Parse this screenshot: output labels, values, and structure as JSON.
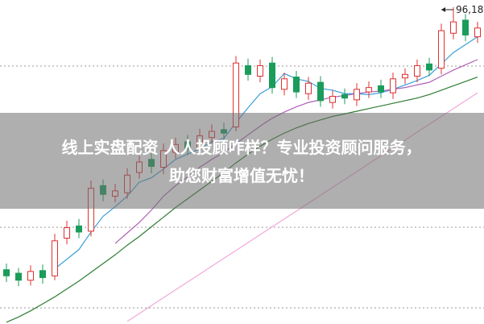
{
  "chart_data": {
    "type": "candlestick",
    "title_lines": [
      "线上实盘配资 人人投顾咋样？专业投资顾问服务，",
      "助您财富增值无忧！"
    ],
    "annotation": "96,18",
    "ylim": [
      60,
      97
    ],
    "up_color": "#e03030",
    "down_color": "#1a9c5a",
    "open": [
      66.2,
      65.8,
      65.0,
      66.1,
      65.5,
      69.8,
      71.2,
      70.6,
      75.8,
      74.6,
      75.0,
      77.3,
      78.8,
      77.9,
      79.6,
      80.8,
      80.1,
      81.3,
      82.2,
      82.5,
      89.5,
      88.3,
      89.8,
      86.8,
      88.2,
      86.3,
      87.6,
      85.3,
      86.2,
      85.6,
      86.5,
      87.2,
      86.4,
      88.1,
      88.3,
      89.7,
      89.2,
      93.2,
      94.7,
      92.8
    ],
    "high": [
      66.9,
      66.4,
      66.7,
      66.8,
      70.3,
      71.8,
      72.0,
      76.4,
      76.5,
      76.0,
      77.8,
      79.2,
      79.6,
      80.6,
      81.3,
      81.6,
      82.3,
      82.8,
      83.0,
      90.6,
      90.3,
      90.2,
      90.5,
      88.7,
      88.9,
      88.2,
      88.3,
      86.7,
      86.9,
      87.5,
      87.7,
      87.9,
      88.7,
      89.2,
      90.2,
      90.4,
      94.3,
      96.18,
      95.4,
      94.5
    ],
    "low": [
      64.8,
      64.3,
      64.4,
      64.6,
      65.0,
      69.1,
      69.8,
      70.0,
      74.0,
      73.9,
      74.3,
      76.6,
      77.2,
      77.1,
      78.9,
      79.3,
      79.4,
      80.6,
      81.0,
      82.0,
      87.8,
      87.6,
      86.3,
      86.1,
      85.8,
      85.6,
      84.8,
      84.6,
      85.1,
      84.9,
      85.8,
      85.8,
      85.7,
      87.4,
      87.6,
      88.3,
      88.5,
      92.5,
      92.3,
      92.1
    ],
    "close": [
      65.5,
      65.0,
      66.0,
      65.3,
      69.5,
      71.0,
      70.5,
      75.5,
      74.8,
      75.2,
      77.0,
      78.5,
      78.0,
      79.8,
      80.5,
      80.0,
      81.5,
      82.0,
      81.8,
      89.8,
      88.5,
      89.5,
      87.0,
      88.0,
      86.5,
      87.5,
      85.5,
      86.0,
      85.8,
      86.8,
      87.0,
      86.5,
      88.0,
      88.5,
      89.5,
      89.0,
      93.5,
      94.5,
      93.0,
      93.8
    ],
    "overlays": [
      {
        "color": "#3aa0d8",
        "values": [
          null,
          null,
          null,
          null,
          66.3,
          67.4,
          68.5,
          70.5,
          72.3,
          73.4,
          74.6,
          76.2,
          76.7,
          77.7,
          78.8,
          79.4,
          80.0,
          80.8,
          81.2,
          83.0,
          84.7,
          86.3,
          87.1,
          88.6,
          88.0,
          87.7,
          86.9,
          86.7,
          86.3,
          86.3,
          86.2,
          86.4,
          86.8,
          87.3,
          87.8,
          88.4,
          89.7,
          91.0,
          91.9,
          92.8
        ]
      },
      {
        "color": "#b060b8",
        "values": [
          null,
          null,
          null,
          null,
          null,
          null,
          null,
          null,
          null,
          69.2,
          70.4,
          71.6,
          73.0,
          74.6,
          75.8,
          76.8,
          77.9,
          78.8,
          79.6,
          80.6,
          81.6,
          82.6,
          83.5,
          84.2,
          84.8,
          85.3,
          85.6,
          85.9,
          86.1,
          86.3,
          86.5,
          86.6,
          86.8,
          87.0,
          87.3,
          87.6,
          88.3,
          89.0,
          89.6,
          90.2
        ]
      },
      {
        "color": "#2e7d32",
        "values": [
          60.2,
          60.8,
          61.5,
          62.3,
          63.1,
          64.0,
          64.9,
          65.9,
          66.9,
          67.9,
          69.0,
          70.0,
          71.1,
          72.2,
          73.3,
          74.3,
          75.3,
          76.3,
          77.3,
          78.4,
          79.4,
          80.3,
          81.1,
          81.8,
          82.4,
          82.9,
          83.3,
          83.7,
          84.0,
          84.3,
          84.6,
          84.9,
          85.2,
          85.5,
          85.8,
          86.2,
          86.7,
          87.2,
          87.7,
          88.2
        ]
      },
      {
        "color": "#f0a8d8",
        "values": [
          null,
          null,
          null,
          null,
          null,
          null,
          null,
          null,
          null,
          null,
          60.3,
          61.2,
          62.1,
          63.0,
          63.9,
          64.8,
          65.7,
          66.6,
          67.5,
          68.4,
          69.3,
          70.2,
          71.1,
          72.0,
          72.9,
          73.8,
          74.7,
          75.6,
          76.5,
          77.4,
          78.3,
          79.2,
          80.1,
          81.0,
          81.9,
          82.8,
          83.7,
          84.6,
          85.5,
          86.4
        ]
      }
    ]
  }
}
